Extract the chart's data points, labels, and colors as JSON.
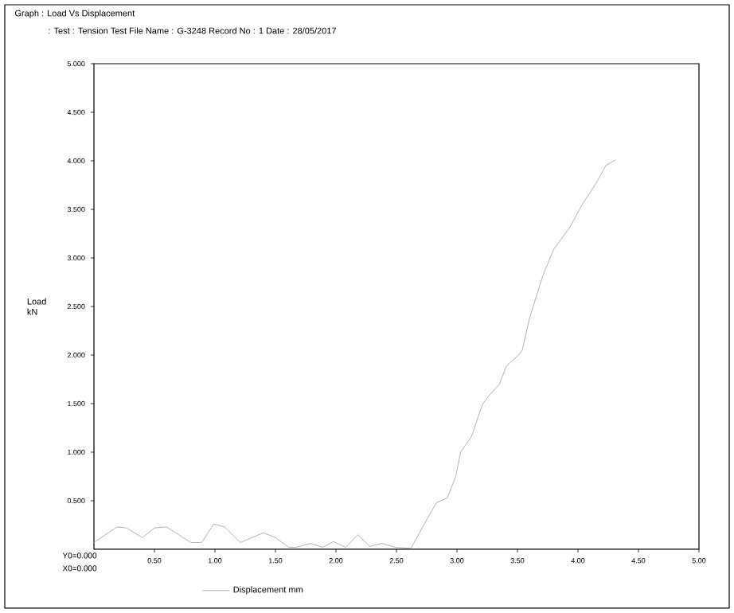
{
  "chart_data": {
    "type": "line",
    "title": "Graph    : Load Vs Displacement",
    "subtitle": ": Test : Tension Test     File Name : G-3248     Record No : 1     Date : 28/05/2017",
    "ylabel": "Load kN",
    "annotations": [
      "Y0=0.000",
      "X0=0.000"
    ],
    "xlim": [
      0,
      5
    ],
    "ylim": [
      0,
      5
    ],
    "xticks": [
      {
        "value": 0.5,
        "label": "0.50"
      },
      {
        "value": 1,
        "label": "1.00"
      },
      {
        "value": 1.5,
        "label": "1.50"
      },
      {
        "value": 2,
        "label": "2.00"
      },
      {
        "value": 2.5,
        "label": "2.50"
      },
      {
        "value": 3,
        "label": "3.00"
      },
      {
        "value": 3.5,
        "label": "3.50"
      },
      {
        "value": 4,
        "label": "4.00"
      },
      {
        "value": 4.5,
        "label": "4.50"
      },
      {
        "value": 5,
        "label": "5.00"
      }
    ],
    "yticks": [
      {
        "value": 0.5,
        "label": "0.500"
      },
      {
        "value": 1,
        "label": "1.000"
      },
      {
        "value": 1.5,
        "label": "1.500"
      },
      {
        "value": 2,
        "label": "2.000"
      },
      {
        "value": 2.5,
        "label": "2.500"
      },
      {
        "value": 3,
        "label": "3.000"
      },
      {
        "value": 3.5,
        "label": "3.500"
      },
      {
        "value": 4,
        "label": "4.000"
      },
      {
        "value": 4.5,
        "label": "4.500"
      },
      {
        "value": 5,
        "label": "5.000"
      }
    ],
    "grid": false,
    "legend": "bottom",
    "marker": "none",
    "line_style": "solid",
    "series": [
      {
        "name": "Displacement  mm",
        "color": "#b4b4b4",
        "x": [
          0,
          0.19,
          0.27,
          0.4,
          0.5,
          0.6,
          0.8,
          0.89,
          0.99,
          1.08,
          1.21,
          1.4,
          1.5,
          1.61,
          1.67,
          1.79,
          1.89,
          1.98,
          2.08,
          2.18,
          2.28,
          2.38,
          2.49,
          2.62,
          2.73,
          2.83,
          2.92,
          2.99,
          3.03,
          3.12,
          3.21,
          3.27,
          3.35,
          3.41,
          3.51,
          3.54,
          3.6,
          3.71,
          3.8,
          3.93,
          4.04,
          4.15,
          4.23,
          4.31
        ],
        "values": [
          0.07,
          0.23,
          0.22,
          0.12,
          0.22,
          0.23,
          0.07,
          0.07,
          0.26,
          0.23,
          0.07,
          0.17,
          0.12,
          0.02,
          0.02,
          0.06,
          0.02,
          0.08,
          0.02,
          0.15,
          0.03,
          0.06,
          0.02,
          0.01,
          0.26,
          0.48,
          0.53,
          0.75,
          1.0,
          1.16,
          1.49,
          1.59,
          1.7,
          1.89,
          2.0,
          2.05,
          2.38,
          2.82,
          3.09,
          3.31,
          3.56,
          3.77,
          3.95,
          4.01
        ]
      }
    ]
  }
}
